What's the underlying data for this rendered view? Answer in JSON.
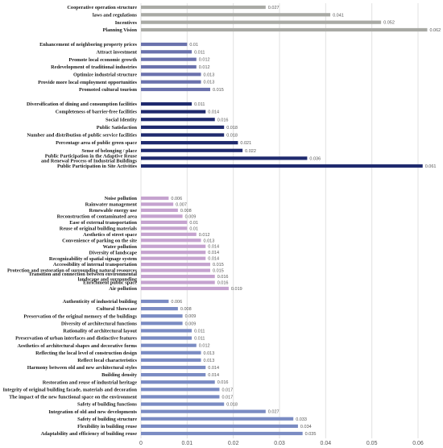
{
  "chart_data": {
    "type": "bar",
    "orientation": "horizontal",
    "xlim": [
      0,
      0.06
    ],
    "x_ticks": [
      "0",
      "0.01",
      "0.02",
      "0.03",
      "0.04",
      "0.05",
      "0.06"
    ],
    "grid": true,
    "groups": [
      {
        "color": "#a9aaa5",
        "items": [
          {
            "label": "Cooperative operation structure",
            "value": 0.027
          },
          {
            "label": "laws and regulations",
            "value": 0.041
          },
          {
            "label": "Incentives",
            "value": 0.052
          },
          {
            "label": "Planning Vision",
            "value": 0.062
          }
        ]
      },
      {
        "color": "#6b72ad",
        "items": [
          {
            "label": "Enhancement of neighboring property prices",
            "value": 0.01
          },
          {
            "label": "Attract investment",
            "value": 0.011
          },
          {
            "label": "Promote local economic growth",
            "value": 0.012
          },
          {
            "label": "Redevelopment of traditional industries",
            "value": 0.012
          },
          {
            "label": "Optimize industrial structure",
            "value": 0.013
          },
          {
            "label": "Provide more local employment opportunities",
            "value": 0.013
          },
          {
            "label": "Promoted cultural tourism",
            "value": 0.015
          }
        ]
      },
      {
        "color": "#1f2a6e",
        "items": [
          {
            "label": "Diversification of dining and consumption facilities",
            "value": 0.011
          },
          {
            "label": "Completeness of barrier-free facilities",
            "value": 0.014
          },
          {
            "label": "Social Identity",
            "value": 0.016
          },
          {
            "label": "Public Satisfaction",
            "value": 0.018
          },
          {
            "label": "Number and distribution of public service facilities",
            "value": 0.018
          },
          {
            "label": "Percentage area of public green space",
            "value": 0.021
          },
          {
            "label": "Sense of belonging / place",
            "value": 0.022
          },
          {
            "label": "Public Participation in the Adaptive Reuse and Renewal Process of Industrial Buildings",
            "value": 0.036
          },
          {
            "label": "Public Participation in Site Activities",
            "value": 0.061
          }
        ]
      },
      {
        "color": "#c5a3cf",
        "items": [
          {
            "label": "Noise pollution",
            "value": 0.006
          },
          {
            "label": "Rainwater management",
            "value": 0.007
          },
          {
            "label": "Renewable energy use",
            "value": 0.008
          },
          {
            "label": "Reconstruction of contaminated area",
            "value": 0.009
          },
          {
            "label": "Ease of external transportation",
            "value": 0.01
          },
          {
            "label": "Reuse of original building materials",
            "value": 0.01
          },
          {
            "label": "Aesthetics of street space",
            "value": 0.012
          },
          {
            "label": "Convenience of parking on the site",
            "value": 0.013
          },
          {
            "label": "Water pollution",
            "value": 0.014
          },
          {
            "label": "Diversity of landscape",
            "value": 0.014
          },
          {
            "label": "Recognizability of spatial signage system",
            "value": 0.014
          },
          {
            "label": "Accessibility of internal transportation",
            "value": 0.015
          },
          {
            "label": "Protection and restoration of surrounding natural resources",
            "value": 0.015
          },
          {
            "label": "Transition and connection between environmental landscape and surrounding",
            "value": 0.016
          },
          {
            "label": "Enrichment public space",
            "value": 0.016
          },
          {
            "label": "Air pollution",
            "value": 0.019
          }
        ]
      },
      {
        "color": "#7b8cc3",
        "items": [
          {
            "label": "Authenticity of industrial building",
            "value": 0.006
          },
          {
            "label": "Cultural Showcase",
            "value": 0.008
          },
          {
            "label": "Preservation of the original memory of the buildings",
            "value": 0.009
          },
          {
            "label": "Diversity of architectural functions",
            "value": 0.009
          },
          {
            "label": "Rationality of architectural layout",
            "value": 0.011
          },
          {
            "label": "Preservation of urban interfaces and distinctive features",
            "value": 0.011
          },
          {
            "label": "Aesthetics of architectural shapes and decorative forms",
            "value": 0.012
          },
          {
            "label": "Reflecting the local level of construction design",
            "value": 0.013
          },
          {
            "label": "Reflect local characteristics",
            "value": 0.013
          },
          {
            "label": "Harmony between old and new architectural styles",
            "value": 0.014
          },
          {
            "label": "Building density",
            "value": 0.014
          },
          {
            "label": "Restoration and reuse of industrial heritage",
            "value": 0.016
          },
          {
            "label": "Integrity of original building facade, materials and decoration",
            "value": 0.017
          },
          {
            "label": "The impact of the new functional space on the environment",
            "value": 0.017
          },
          {
            "label": "Safety of building functions",
            "value": 0.018
          },
          {
            "label": "Integration of old and new developments",
            "value": 0.027
          },
          {
            "label": "Safety of building structure",
            "value": 0.033
          },
          {
            "label": "Flexibility in building reuse",
            "value": 0.034
          },
          {
            "label": "Adaptability and efficiency of building reuse",
            "value": 0.035
          }
        ]
      }
    ]
  }
}
